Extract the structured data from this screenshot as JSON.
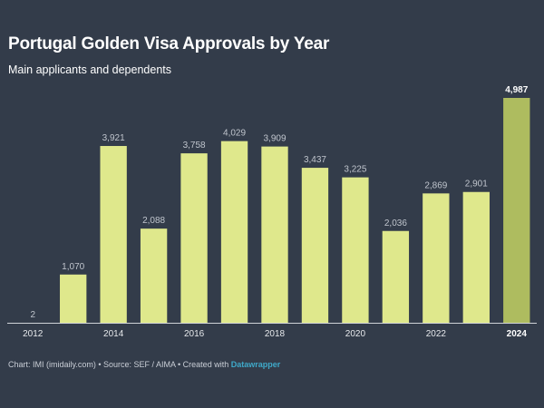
{
  "header": {
    "title": "Portugal Golden Visa Approvals by Year",
    "subtitle": "Main applicants and dependents"
  },
  "footer": {
    "text": "Chart: IMI (imidaily.com) • Source: SEF / AIMA • Created with",
    "brand": "Datawrapper"
  },
  "colors": {
    "background": "#333c4a",
    "bar": "#dfe88c",
    "bar_highlight": "#aebc5f",
    "axis": "#cfd3d8"
  },
  "chart_data": {
    "type": "bar",
    "title": "Portugal Golden Visa Approvals by Year",
    "subtitle": "Main applicants and dependents",
    "categories": [
      "2012",
      "2013",
      "2014",
      "2015",
      "2016",
      "2017",
      "2018",
      "2019",
      "2020",
      "2021",
      "2022",
      "2023",
      "2024"
    ],
    "values": [
      2,
      1070,
      3921,
      2088,
      3758,
      4029,
      3909,
      3437,
      3225,
      2036,
      2869,
      2901,
      4987
    ],
    "value_labels": [
      "2",
      "1,070",
      "3,921",
      "2,088",
      "3,758",
      "4,029",
      "3,909",
      "3,437",
      "3,225",
      "2,036",
      "2,869",
      "2,901",
      "4,987"
    ],
    "x_tick_labels": [
      "2012",
      "",
      "2014",
      "",
      "2016",
      "",
      "2018",
      "",
      "2020",
      "",
      "2022",
      "",
      "2024"
    ],
    "highlight_index": 12,
    "ylim": [
      0,
      4987
    ],
    "grid": false,
    "legend": "none"
  }
}
